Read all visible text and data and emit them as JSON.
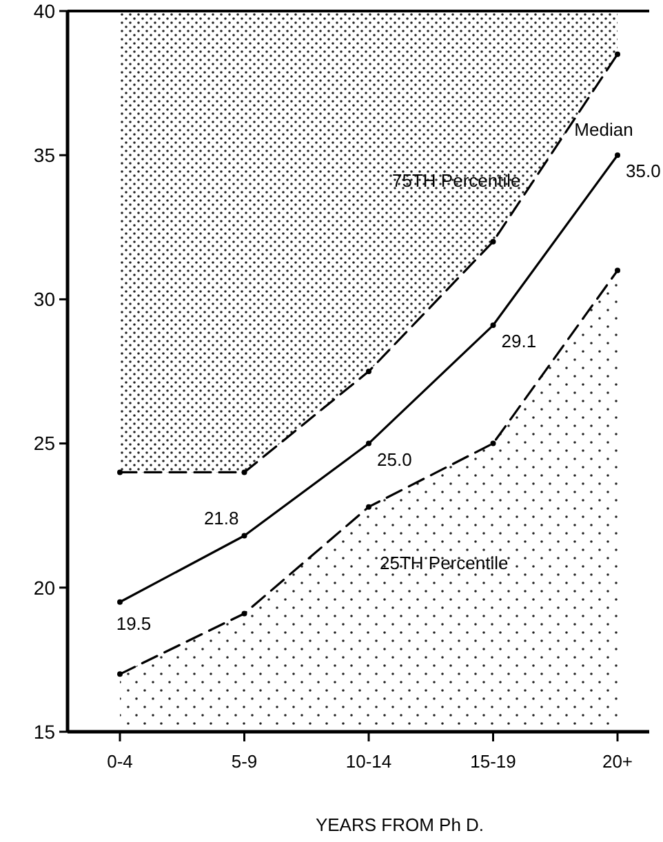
{
  "chart_data": {
    "type": "line",
    "xlabel": "YEARS FROM Ph D.",
    "categories": [
      "0-4",
      "5-9",
      "10-14",
      "15-19",
      "20+"
    ],
    "ylim": [
      15,
      40
    ],
    "yticks": [
      15,
      20,
      25,
      30,
      35,
      40
    ],
    "marker": "circle",
    "series": [
      {
        "name": "75TH Percentile",
        "color": "#000000",
        "line_style": "dashed",
        "values": [
          24.0,
          24.0,
          27.5,
          32.0,
          38.5
        ],
        "lower": [
          24.0,
          24.0,
          27.5,
          32.0,
          38.5
        ],
        "upper": [
          40,
          40,
          40,
          40,
          40
        ]
      },
      {
        "name": "Median",
        "color": "#000000",
        "line_style": "solid",
        "values": [
          19.5,
          21.8,
          25.0,
          29.1,
          35.0
        ],
        "value_labels": [
          "19.5",
          "21.8",
          "25.0",
          "29.1",
          "35.0"
        ]
      },
      {
        "name": "25TH Percentile",
        "color": "#000000",
        "line_style": "dashed",
        "values": [
          17.0,
          19.1,
          22.8,
          25.0,
          31.0
        ],
        "lower": [
          15,
          15,
          15,
          15,
          15
        ],
        "upper": [
          17.0,
          19.1,
          22.8,
          25.0,
          31.0
        ]
      }
    ]
  }
}
